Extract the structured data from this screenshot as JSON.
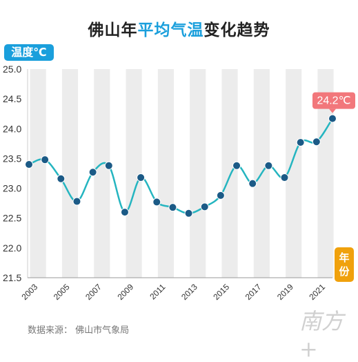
{
  "header": {
    "title_part1": "佛山年",
    "title_part2": "平均气温",
    "title_part3": "变化趋势"
  },
  "colors": {
    "title_highlight": "#1a9fdc",
    "ylabel_badge": "#1a9fdc",
    "xlabel_badge": "#f0a10c",
    "line": "#25b5c0",
    "marker": "#1b5a86",
    "band": "#ececec",
    "callout": "#f2777b"
  },
  "footer": {
    "source": "数据来源：  佛山市气象局",
    "watermark": "南方+"
  },
  "chart_data": {
    "type": "line",
    "ylabel": "温度℃",
    "xlabel": "年份",
    "ylim": [
      21.5,
      25.0
    ],
    "yticks": [
      "25.0",
      "24.5",
      "24.0",
      "23.5",
      "23.0",
      "22.5",
      "22.0",
      "21.5"
    ],
    "x": [
      2002,
      2003,
      2004,
      2005,
      2006,
      2007,
      2008,
      2009,
      2010,
      2011,
      2012,
      2013,
      2014,
      2015,
      2016,
      2017,
      2018,
      2019,
      2020,
      2021
    ],
    "xtick_labels": [
      "2003",
      "2005",
      "2007",
      "2009",
      "2011",
      "2013",
      "2015",
      "2017",
      "2019",
      "2021"
    ],
    "values": [
      23.4,
      23.48,
      23.16,
      22.78,
      23.27,
      23.38,
      22.6,
      23.18,
      22.77,
      22.68,
      22.58,
      22.69,
      22.88,
      23.38,
      23.08,
      23.38,
      23.18,
      23.77,
      23.78,
      24.17
    ],
    "annotation": {
      "x": 2021,
      "text": "24.2℃"
    },
    "grid": "alternating vertical bands"
  }
}
